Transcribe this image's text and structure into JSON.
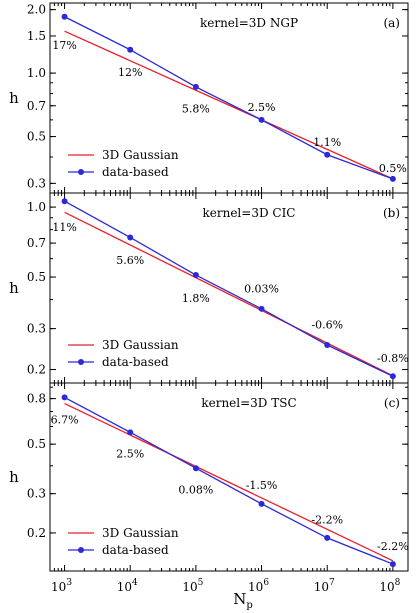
{
  "chart_data": [
    {
      "type": "line",
      "kernel_label": "kernel=3D NGP",
      "panel_tag": "(a)",
      "ylabel": "h",
      "xlabel": "",
      "x_scale": "log",
      "y_scale": "log",
      "xlim": [
        600,
        170000000
      ],
      "ylim": [
        0.27,
        2.15
      ],
      "x_ticks": [
        {
          "value": 1000,
          "base": "10",
          "exp": "3"
        },
        {
          "value": 10000,
          "base": "10",
          "exp": "4"
        },
        {
          "value": 100000,
          "base": "10",
          "exp": "5"
        },
        {
          "value": 1000000,
          "base": "10",
          "exp": "6"
        },
        {
          "value": 10000000,
          "base": "10",
          "exp": "7"
        },
        {
          "value": 100000000,
          "base": "10",
          "exp": "8"
        }
      ],
      "y_ticks": [
        {
          "value": 0.3,
          "label": "0.3"
        },
        {
          "value": 0.5,
          "label": "0.5"
        },
        {
          "value": 0.7,
          "label": "0.7"
        },
        {
          "value": 1.0,
          "label": "1.0"
        },
        {
          "value": 1.5,
          "label": "1.5"
        },
        {
          "value": 2.0,
          "label": "2.0"
        }
      ],
      "series": [
        {
          "name": "3D Gaussian",
          "color": "#e8202a",
          "marker": false,
          "x": [
            1000,
            100000000
          ],
          "y": [
            1.58,
            0.315
          ]
        },
        {
          "name": "data-based",
          "color": "#2a2ad8",
          "marker": true,
          "x": [
            1000,
            10000,
            100000,
            1000000,
            10000000,
            100000000
          ],
          "y": [
            1.85,
            1.29,
            0.86,
            0.6,
            0.41,
            0.315
          ]
        }
      ],
      "annotations": [
        {
          "x": 1000,
          "y": 1.3,
          "text": "17%"
        },
        {
          "x": 10000,
          "y": 0.97,
          "text": "12%"
        },
        {
          "x": 100000,
          "y": 0.65,
          "text": "5.8%"
        },
        {
          "x": 1000000,
          "y": 0.66,
          "text": "2.5%"
        },
        {
          "x": 10000000,
          "y": 0.45,
          "text": "1.1%"
        },
        {
          "x": 100000000,
          "y": 0.34,
          "text": "0.5%"
        }
      ],
      "legend_position": "bottom-left"
    },
    {
      "type": "line",
      "kernel_label": "kernel=3D CIC",
      "panel_tag": "(b)",
      "ylabel": "h",
      "xlabel": "",
      "x_scale": "log",
      "y_scale": "log",
      "xlim": [
        600,
        170000000
      ],
      "ylim": [
        0.175,
        1.15
      ],
      "x_ticks": [
        {
          "value": 1000,
          "base": "10",
          "exp": "3"
        },
        {
          "value": 10000,
          "base": "10",
          "exp": "4"
        },
        {
          "value": 100000,
          "base": "10",
          "exp": "5"
        },
        {
          "value": 1000000,
          "base": "10",
          "exp": "6"
        },
        {
          "value": 10000000,
          "base": "10",
          "exp": "7"
        },
        {
          "value": 100000000,
          "base": "10",
          "exp": "8"
        }
      ],
      "y_ticks": [
        {
          "value": 0.2,
          "label": "0.2"
        },
        {
          "value": 0.3,
          "label": "0.3"
        },
        {
          "value": 0.5,
          "label": "0.5"
        },
        {
          "value": 0.7,
          "label": "0.7"
        },
        {
          "value": 1.0,
          "label": "1.0"
        }
      ],
      "series": [
        {
          "name": "3D Gaussian",
          "color": "#e8202a",
          "marker": false,
          "x": [
            1000,
            100000000
          ],
          "y": [
            0.95,
            0.188
          ]
        },
        {
          "name": "data-based",
          "color": "#2a2ad8",
          "marker": true,
          "x": [
            1000,
            10000,
            100000,
            1000000,
            10000000,
            100000000
          ],
          "y": [
            1.06,
            0.74,
            0.51,
            0.365,
            0.255,
            0.187
          ]
        }
      ],
      "annotations": [
        {
          "x": 1000,
          "y": 0.79,
          "text": "11%"
        },
        {
          "x": 10000,
          "y": 0.57,
          "text": "5.6%"
        },
        {
          "x": 100000,
          "y": 0.39,
          "text": "1.8%"
        },
        {
          "x": 1000000,
          "y": 0.43,
          "text": "0.03%"
        },
        {
          "x": 10000000,
          "y": 0.3,
          "text": "-0.6%"
        },
        {
          "x": 100000000,
          "y": 0.215,
          "text": "-0.8%"
        }
      ],
      "legend_position": "bottom-left"
    },
    {
      "type": "line",
      "kernel_label": "kernel=3D TSC",
      "panel_tag": "(c)",
      "ylabel": "h",
      "xlabel": "N_p",
      "x_scale": "log",
      "y_scale": "log",
      "xlim": [
        600,
        170000000
      ],
      "ylim": [
        0.135,
        0.94
      ],
      "x_ticks": [
        {
          "value": 1000,
          "base": "10",
          "exp": "3"
        },
        {
          "value": 10000,
          "base": "10",
          "exp": "4"
        },
        {
          "value": 100000,
          "base": "10",
          "exp": "5"
        },
        {
          "value": 1000000,
          "base": "10",
          "exp": "6"
        },
        {
          "value": 10000000,
          "base": "10",
          "exp": "7"
        },
        {
          "value": 100000000,
          "base": "10",
          "exp": "8"
        }
      ],
      "y_ticks": [
        {
          "value": 0.2,
          "label": "0.2"
        },
        {
          "value": 0.3,
          "label": "0.3"
        },
        {
          "value": 0.5,
          "label": "0.5"
        },
        {
          "value": 0.8,
          "label": "0.8"
        }
      ],
      "series": [
        {
          "name": "3D Gaussian",
          "color": "#e8202a",
          "marker": false,
          "x": [
            1000,
            100000000
          ],
          "y": [
            0.76,
            0.15
          ]
        },
        {
          "name": "data-based",
          "color": "#2a2ad8",
          "marker": true,
          "x": [
            1000,
            10000,
            100000,
            1000000,
            10000000,
            100000000
          ],
          "y": [
            0.81,
            0.565,
            0.39,
            0.27,
            0.19,
            0.145
          ]
        }
      ],
      "annotations": [
        {
          "x": 1000,
          "y": 0.62,
          "text": "6.7%"
        },
        {
          "x": 10000,
          "y": 0.435,
          "text": "2.5%"
        },
        {
          "x": 100000,
          "y": 0.3,
          "text": "0.08%"
        },
        {
          "x": 1000000,
          "y": 0.315,
          "text": "-1.5%"
        },
        {
          "x": 10000000,
          "y": 0.22,
          "text": "-2.2%"
        },
        {
          "x": 100000000,
          "y": 0.168,
          "text": "-2.2%"
        }
      ],
      "legend_position": "bottom-left"
    }
  ],
  "x_axis_title": {
    "base": "N",
    "sub": "p"
  }
}
